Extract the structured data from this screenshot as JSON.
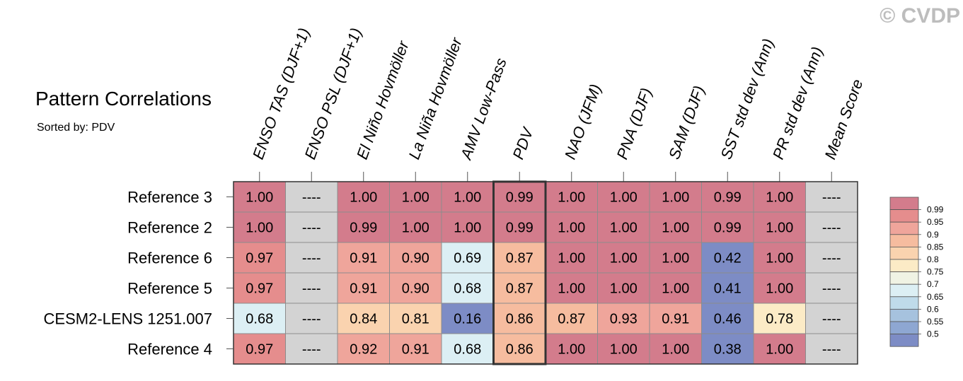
{
  "header": {
    "title": "Pattern Correlations",
    "subtitle": "Sorted by: PDV",
    "copyright": "© CVDP"
  },
  "chart_data": {
    "type": "heatmap",
    "columns": [
      "ENSO TAS (DJF+1)",
      "ENSO PSL (DJF+1)",
      "El Niño Hovmöller",
      "La Niña Hovmöller",
      "AMV Low-Pass",
      "PDV",
      "NAO (JFM)",
      "PNA (DJF)",
      "SAM (DJF)",
      "SST std dev (Ann)",
      "PR std dev (Ann)",
      "Mean Score"
    ],
    "rows": [
      "Reference 3",
      "Reference 2",
      "Reference 6",
      "Reference 5",
      "CESM2-LENS 1251.007",
      "Reference 4"
    ],
    "values": [
      [
        "1.00",
        "----",
        "1.00",
        "1.00",
        "1.00",
        "0.99",
        "1.00",
        "1.00",
        "1.00",
        "0.99",
        "1.00",
        "----"
      ],
      [
        "1.00",
        "----",
        "0.99",
        "1.00",
        "1.00",
        "0.99",
        "1.00",
        "1.00",
        "1.00",
        "0.99",
        "1.00",
        "----"
      ],
      [
        "0.97",
        "----",
        "0.91",
        "0.90",
        "0.69",
        "0.87",
        "1.00",
        "1.00",
        "1.00",
        "0.42",
        "1.00",
        "----"
      ],
      [
        "0.97",
        "----",
        "0.91",
        "0.90",
        "0.68",
        "0.87",
        "1.00",
        "1.00",
        "1.00",
        "0.41",
        "1.00",
        "----"
      ],
      [
        "0.68",
        "----",
        "0.84",
        "0.81",
        "0.16",
        "0.86",
        "0.87",
        "0.93",
        "0.91",
        "0.46",
        "0.78",
        "----"
      ],
      [
        "0.97",
        "----",
        "0.92",
        "0.91",
        "0.68",
        "0.86",
        "1.00",
        "1.00",
        "1.00",
        "0.38",
        "1.00",
        "----"
      ]
    ],
    "highlight_column": "PDV",
    "missing_color": "#d3d3d3",
    "legend": {
      "position": "right",
      "levels": [
        "0.99",
        "0.95",
        "0.9",
        "0.85",
        "0.8",
        "0.75",
        "0.7",
        "0.65",
        "0.6",
        "0.55",
        "0.5"
      ],
      "colors": [
        "#d37c8c",
        "#e58d8d",
        "#efa59b",
        "#f6bc9f",
        "#fad3af",
        "#fcebc6",
        "#f0f3e4",
        "#dceff4",
        "#bfdbea",
        "#a6c2de",
        "#8ea7d2",
        "#7d8cc5"
      ]
    }
  }
}
